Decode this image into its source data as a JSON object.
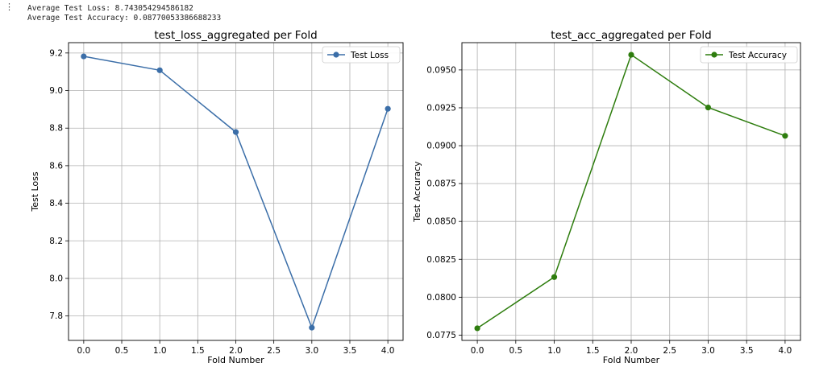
{
  "output": {
    "gutter_icon": "more-vertical-icon",
    "lines": [
      "Average Test Loss: 8.743054294586182",
      "Average Test Accuracy: 0.08770053386688233"
    ]
  },
  "chart_data": [
    {
      "type": "line",
      "title": "test_loss_aggregated per Fold",
      "xlabel": "Fold Number",
      "ylabel": "Test Loss",
      "x": [
        0,
        1,
        2,
        3,
        4
      ],
      "series": [
        {
          "name": "Test Loss",
          "color": "#3b6ea8",
          "marker": "circle",
          "values": [
            9.182,
            9.108,
            8.779,
            7.738,
            8.903
          ]
        }
      ],
      "xlim": [
        -0.2,
        4.2
      ],
      "ylim": [
        7.67,
        9.255
      ],
      "xticks": [
        0,
        0.5,
        1,
        1.5,
        2,
        2.5,
        3,
        3.5,
        4
      ],
      "xtick_labels": [
        "0.0",
        "0.5",
        "1.0",
        "1.5",
        "2.0",
        "2.5",
        "3.0",
        "3.5",
        "4.0"
      ],
      "yticks": [
        7.8,
        8.0,
        8.2,
        8.4,
        8.6,
        8.8,
        9.0,
        9.2
      ],
      "ytick_labels": [
        "7.8",
        "8.0",
        "8.2",
        "8.4",
        "8.6",
        "8.8",
        "9.0",
        "9.2"
      ],
      "grid": true,
      "legend_position": "top-right"
    },
    {
      "type": "line",
      "title": "test_acc_aggregated per Fold",
      "xlabel": "Fold Number",
      "ylabel": "Test Accuracy",
      "x": [
        0,
        1,
        2,
        3,
        4
      ],
      "series": [
        {
          "name": "Test Accuracy",
          "color": "#2e7d0e",
          "marker": "circle",
          "values": [
            0.07795,
            0.08133,
            0.096,
            0.09252,
            0.09065
          ]
        }
      ],
      "xlim": [
        -0.2,
        4.2
      ],
      "ylim": [
        0.07715,
        0.0968
      ],
      "xticks": [
        0,
        0.5,
        1,
        1.5,
        2,
        2.5,
        3,
        3.5,
        4
      ],
      "xtick_labels": [
        "0.0",
        "0.5",
        "1.0",
        "1.5",
        "2.0",
        "2.5",
        "3.0",
        "3.5",
        "4.0"
      ],
      "yticks": [
        0.0775,
        0.08,
        0.0825,
        0.085,
        0.0875,
        0.09,
        0.0925,
        0.095
      ],
      "ytick_labels": [
        "0.0775",
        "0.0800",
        "0.0825",
        "0.0850",
        "0.0875",
        "0.0900",
        "0.0925",
        "0.0950"
      ],
      "grid": true,
      "legend_position": "top-right"
    }
  ]
}
